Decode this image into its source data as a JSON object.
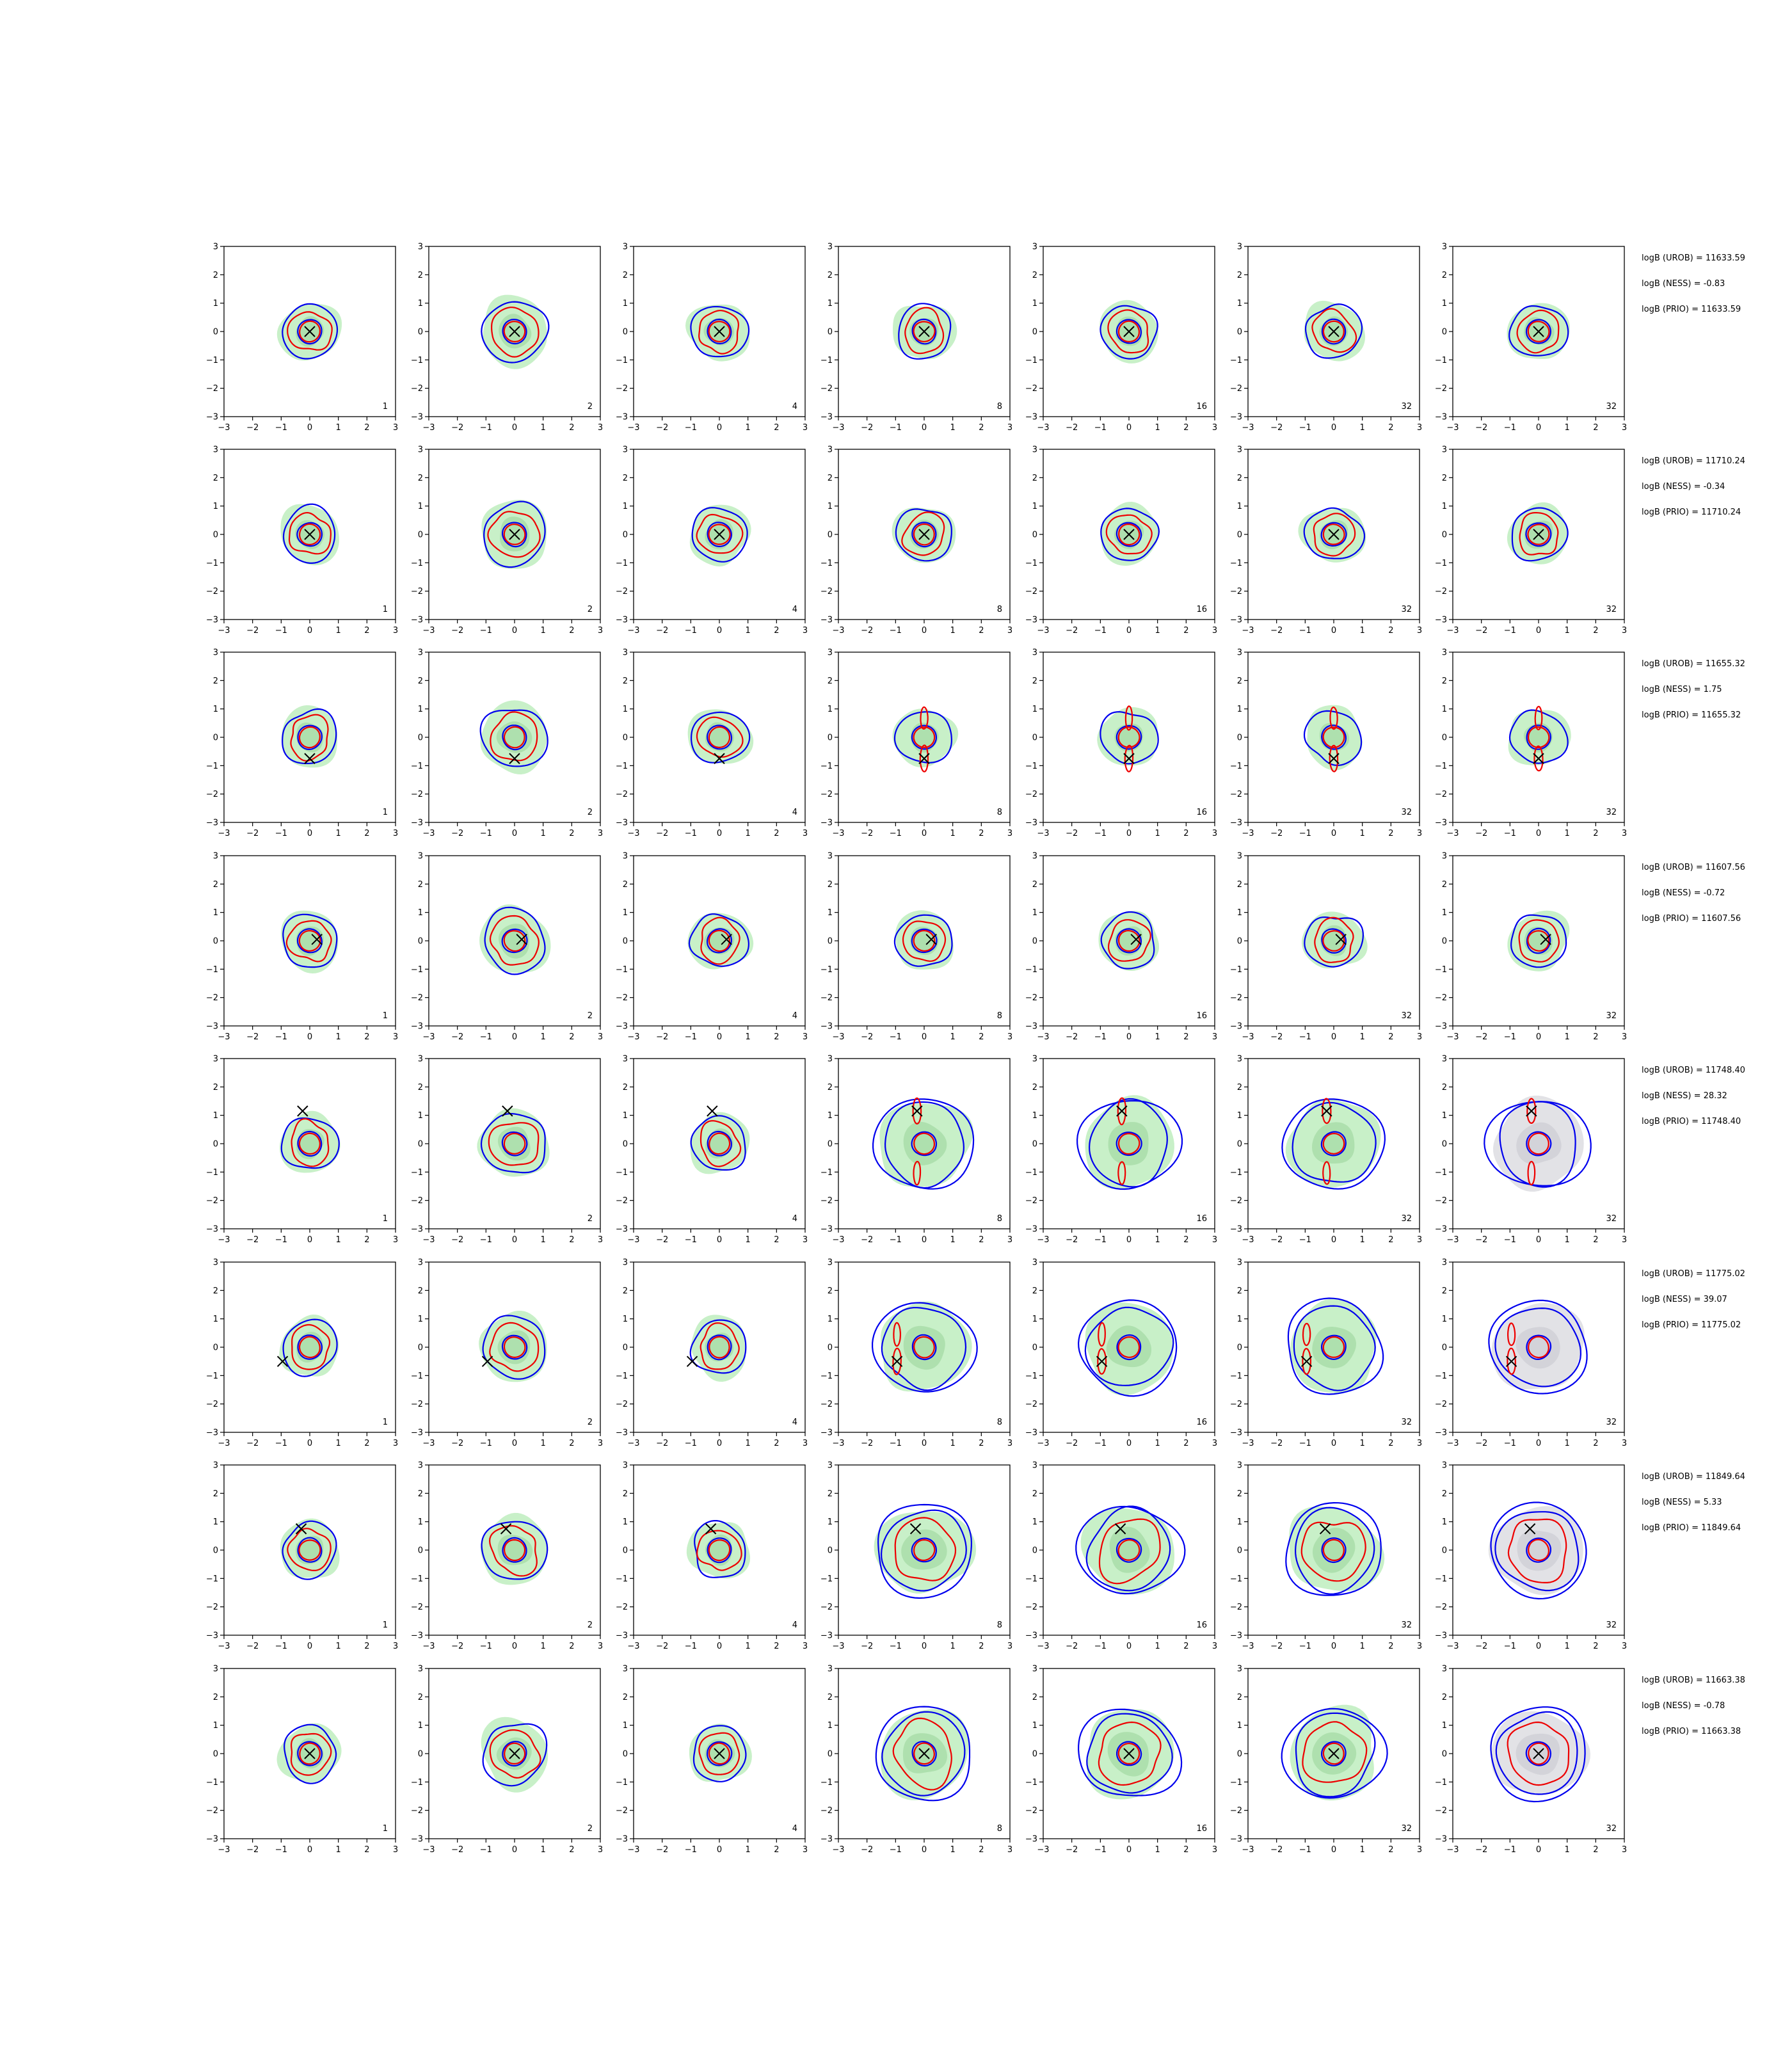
{
  "chart_data": {
    "type": "contour-grid",
    "rows": 8,
    "cols": 7,
    "xlim": [
      -3,
      3
    ],
    "ylim": [
      -3,
      3
    ],
    "xticks": [
      -3,
      -2,
      -1,
      0,
      1,
      2,
      3
    ],
    "yticks": [
      -3,
      -2,
      -1,
      0,
      1,
      2,
      3
    ],
    "tick_labels": [
      "−3",
      "−2",
      "−1",
      "0",
      "1",
      "2",
      "3"
    ],
    "column_labels": [
      "1",
      "2",
      "4",
      "8",
      "16",
      "32",
      "32"
    ],
    "colors": {
      "fill": "#c8f0c8",
      "fill_inner": "#a8dca8",
      "fill_gray": "#e2e2e6",
      "fill_gray_inner": "#cfcfd6",
      "blue": "#0000ee",
      "red": "#ee0000",
      "marker": "#000000"
    },
    "markers": [
      {
        "x": 0,
        "y": 0
      },
      {
        "x": 0,
        "y": 0
      },
      {
        "x": 0,
        "y": -0.75
      },
      {
        "x": 0.25,
        "y": 0.05
      },
      {
        "x": -0.25,
        "y": 1.15
      },
      {
        "x": -0.95,
        "y": -0.5
      },
      {
        "x": -0.3,
        "y": 0.75
      },
      {
        "x": 0,
        "y": 0
      }
    ],
    "annotations": [
      [
        "logB (UROB) = 11633.59",
        "logB (NESS) = -0.83",
        "logB (PRIO) = 11633.59"
      ],
      [
        "logB (UROB) = 11710.24",
        "logB (NESS) = -0.34",
        "logB (PRIO) = 11710.24"
      ],
      [
        "logB (UROB) = 11655.32",
        "logB (NESS) = 1.75",
        "logB (PRIO) = 11655.32"
      ],
      [
        "logB (UROB) = 11607.56",
        "logB (NESS) = -0.72",
        "logB (PRIO) = 11607.56"
      ],
      [
        "logB (UROB) = 11748.40",
        "logB (NESS) = 28.32",
        "logB (PRIO) = 11748.40"
      ],
      [
        "logB (UROB) = 11775.02",
        "logB (NESS) = 39.07",
        "logB (PRIO) = 11775.02"
      ],
      [
        "logB (UROB) = 11849.64",
        "logB (NESS) = 5.33",
        "logB (PRIO) = 11849.64"
      ],
      [
        "logB (UROB) = 11663.38",
        "logB (NESS) = -0.78",
        "logB (PRIO) = 11663.38"
      ]
    ]
  }
}
